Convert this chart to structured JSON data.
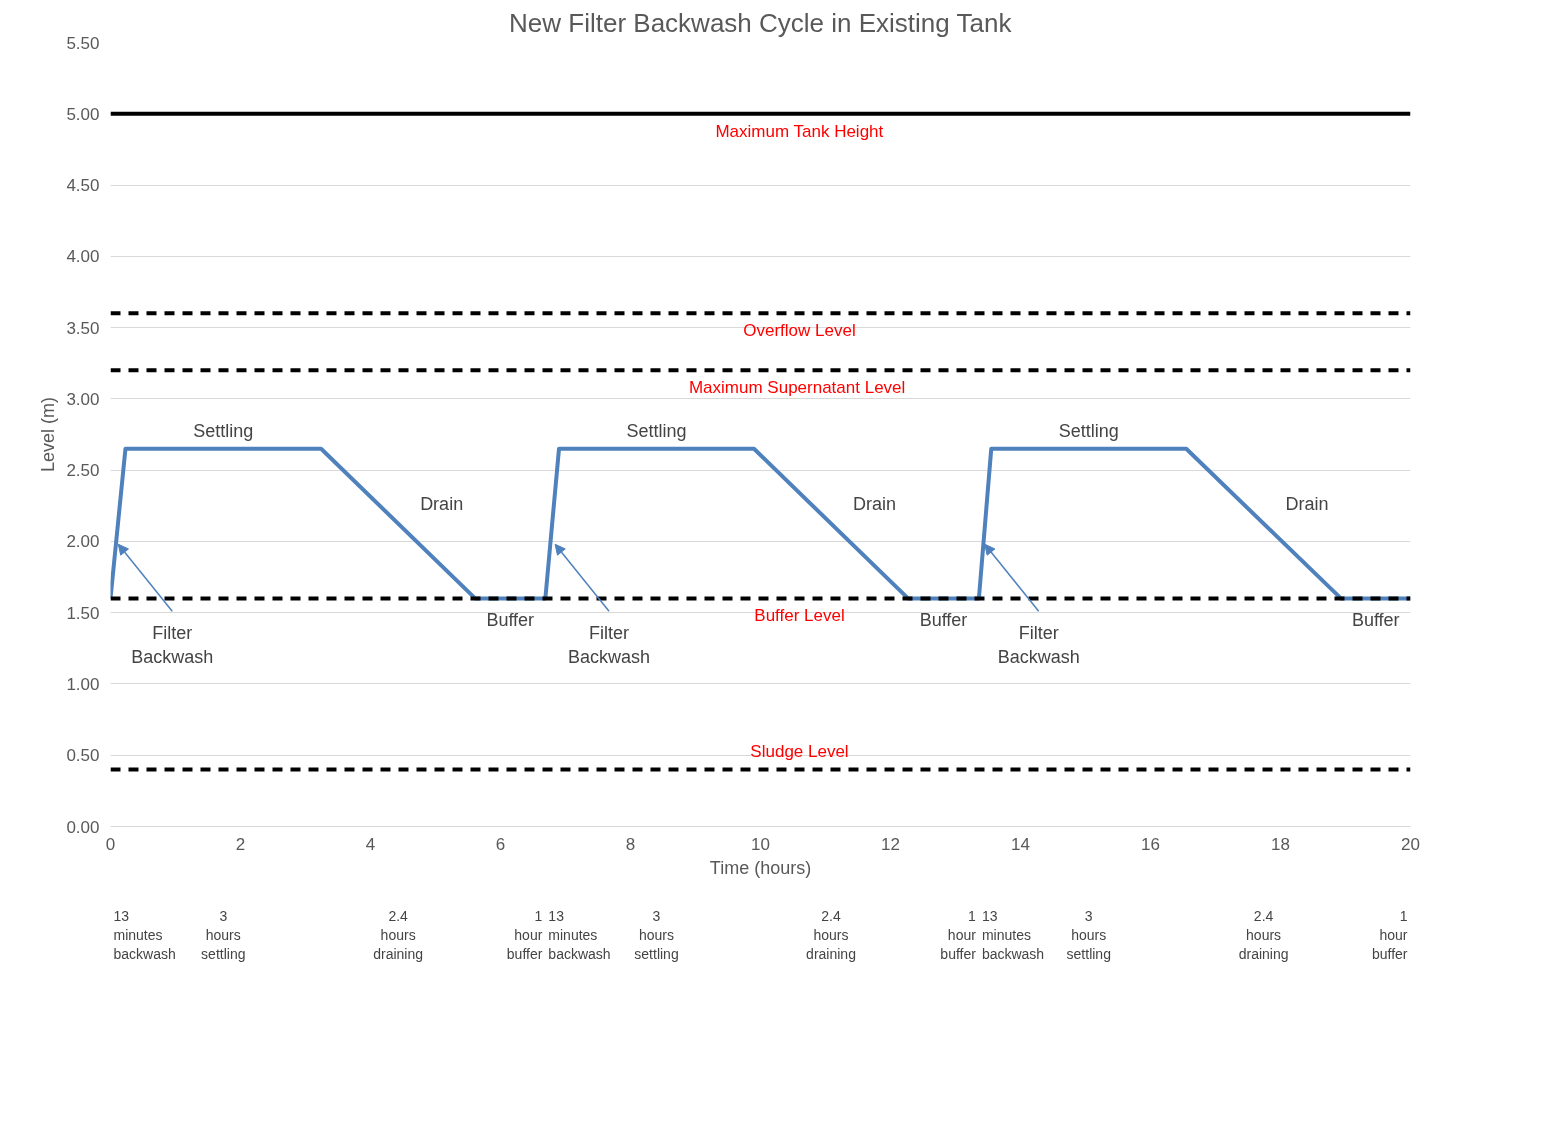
{
  "chart_data": {
    "type": "line",
    "title": "New Filter Backwash Cycle in Existing Tank",
    "xlabel": "Time (hours)",
    "ylabel": "Level (m)",
    "x": [
      0,
      0.23,
      3.24,
      5.61,
      6.69,
      6.9,
      9.9,
      12.27,
      13.36,
      13.55,
      16.55,
      18.93,
      20
    ],
    "series": [
      {
        "color": "#4f81bd",
        "values": [
          1.6,
          2.65,
          2.65,
          1.6,
          1.6,
          2.65,
          2.65,
          1.6,
          1.6,
          2.65,
          2.65,
          1.6,
          1.6
        ]
      }
    ],
    "xlim": [
      0,
      20
    ],
    "xticks": [
      0,
      2,
      4,
      6,
      8,
      10,
      12,
      14,
      16,
      18,
      20
    ],
    "ylim": [
      0,
      5.5
    ],
    "yticks": [
      {
        "value": 0,
        "label": "0.00"
      },
      {
        "value": 0.5,
        "label": "0.50"
      },
      {
        "value": 1,
        "label": "1.00"
      },
      {
        "value": 1.5,
        "label": "1.50"
      },
      {
        "value": 2,
        "label": "2.00"
      },
      {
        "value": 2.5,
        "label": "2.50"
      },
      {
        "value": 3,
        "label": "3.00"
      },
      {
        "value": 3.5,
        "label": "3.50"
      },
      {
        "value": 4,
        "label": "4.00"
      },
      {
        "value": 4.5,
        "label": "4.50"
      },
      {
        "value": 5,
        "label": "5.00"
      },
      {
        "value": 5.5,
        "label": "5.50"
      }
    ],
    "grid": "y",
    "marker": "none",
    "line_style": "solid",
    "ref_lines": [
      {
        "axis": "y",
        "value": 5.0,
        "label": "Maximum Tank Height",
        "color": "#000000",
        "line_style": "solid"
      },
      {
        "axis": "y",
        "value": 3.6,
        "label": "Overflow Level",
        "color": "#000000",
        "line_style": "dashed"
      },
      {
        "axis": "y",
        "value": 3.2,
        "label": "Maximum Supernatant  Level",
        "color": "#000000",
        "line_style": "dashed"
      },
      {
        "axis": "y",
        "value": 1.6,
        "label": "Buffer Level",
        "color": "#000000",
        "line_style": "dashed"
      },
      {
        "axis": "y",
        "value": 0.4,
        "label": "Sludge Level",
        "color": "#000000",
        "line_style": "dashed"
      }
    ],
    "annotations": [
      "Settling",
      "Drain",
      "Buffer",
      {
        "text": "Filter Backwash",
        "x": 0.12,
        "y": 1.98
      },
      "Settling",
      "Drain",
      "Buffer",
      {
        "text": "Filter Backwash",
        "x": 6.84,
        "y": 1.98
      },
      "Settling",
      "Drain",
      "Buffer",
      {
        "text": "Filter Backwash",
        "x": 13.45,
        "y": 1.98
      },
      "13 minutes backwash",
      "3 hours settling",
      "2.4 hours draining",
      "1 hour buffer",
      "13 minutes backwash",
      "3 hours settling",
      "2.4 hours draining",
      "1 hour buffer",
      "13 minutes backwash",
      "3 hours settling",
      "2.4 hours draining",
      "1 hour buffer"
    ]
  }
}
